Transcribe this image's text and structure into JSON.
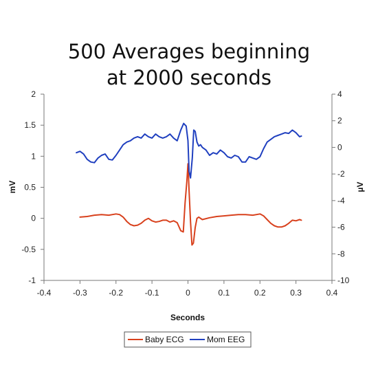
{
  "chart_data": {
    "type": "line",
    "title_lines": [
      "500 Averages beginning",
      "at 2000 seconds"
    ],
    "xlabel": "Seconds",
    "ylabel_left": "mV",
    "ylabel_right": "µV",
    "xlim": [
      -0.4,
      0.4
    ],
    "ylim_left": [
      -1,
      2
    ],
    "ylim_right": [
      -10,
      4
    ],
    "x_ticks": [
      -0.4,
      -0.3,
      -0.2,
      -0.1,
      0,
      0.1,
      0.2,
      0.3,
      0.4
    ],
    "x_tick_labels": [
      "-0.4",
      "-0.3",
      "-0.2",
      "-0.1",
      "0",
      "0.1",
      "0.2",
      "0.3",
      "0.4"
    ],
    "y_left_ticks": [
      -1,
      -0.5,
      0,
      0.5,
      1,
      1.5,
      2
    ],
    "y_left_tick_labels": [
      "-1",
      "-0.5",
      "0",
      "0.5",
      "1",
      "1.5",
      "2"
    ],
    "y_right_ticks": [
      -10,
      -8,
      -6,
      -4,
      -2,
      0,
      2,
      4
    ],
    "y_right_tick_labels": [
      "-10",
      "-8",
      "-6",
      "-4",
      "-2",
      "0",
      "2",
      "4"
    ],
    "grid": false,
    "legend_position": "bottom-center",
    "series": [
      {
        "name": "Baby ECG",
        "axis": "left",
        "color": "#d8401c",
        "x": [
          -0.3,
          -0.28,
          -0.26,
          -0.24,
          -0.22,
          -0.2,
          -0.19,
          -0.18,
          -0.17,
          -0.16,
          -0.15,
          -0.14,
          -0.13,
          -0.12,
          -0.11,
          -0.1,
          -0.09,
          -0.08,
          -0.07,
          -0.06,
          -0.05,
          -0.04,
          -0.03,
          -0.02,
          -0.013,
          -0.008,
          -0.003,
          0,
          0.003,
          0.007,
          0.011,
          0.015,
          0.02,
          0.025,
          0.03,
          0.04,
          0.06,
          0.08,
          0.1,
          0.12,
          0.14,
          0.16,
          0.18,
          0.2,
          0.21,
          0.22,
          0.23,
          0.24,
          0.25,
          0.26,
          0.27,
          0.28,
          0.29,
          0.3,
          0.31,
          0.315
        ],
        "y": [
          0.02,
          0.03,
          0.05,
          0.06,
          0.05,
          0.07,
          0.06,
          0.02,
          -0.05,
          -0.1,
          -0.12,
          -0.11,
          -0.08,
          -0.03,
          0.0,
          -0.04,
          -0.06,
          -0.05,
          -0.03,
          -0.03,
          -0.06,
          -0.04,
          -0.07,
          -0.2,
          -0.22,
          0.25,
          0.6,
          0.88,
          0.45,
          -0.05,
          -0.43,
          -0.4,
          -0.15,
          0.0,
          0.02,
          -0.02,
          0.01,
          0.03,
          0.04,
          0.05,
          0.06,
          0.06,
          0.05,
          0.07,
          0.04,
          -0.02,
          -0.08,
          -0.12,
          -0.14,
          -0.14,
          -0.12,
          -0.08,
          -0.03,
          -0.04,
          -0.02,
          -0.03
        ]
      },
      {
        "name": "Mom EEG",
        "axis": "right",
        "color": "#1f3fbf",
        "x": [
          -0.31,
          -0.3,
          -0.29,
          -0.28,
          -0.27,
          -0.26,
          -0.25,
          -0.24,
          -0.23,
          -0.22,
          -0.21,
          -0.2,
          -0.19,
          -0.18,
          -0.17,
          -0.16,
          -0.15,
          -0.14,
          -0.13,
          -0.12,
          -0.11,
          -0.1,
          -0.09,
          -0.08,
          -0.07,
          -0.06,
          -0.05,
          -0.04,
          -0.03,
          -0.02,
          -0.012,
          -0.005,
          0,
          0.003,
          0.007,
          0.012,
          0.016,
          0.02,
          0.025,
          0.03,
          0.035,
          0.04,
          0.05,
          0.06,
          0.07,
          0.08,
          0.09,
          0.1,
          0.11,
          0.12,
          0.13,
          0.14,
          0.15,
          0.16,
          0.17,
          0.18,
          0.19,
          0.2,
          0.21,
          0.22,
          0.23,
          0.24,
          0.25,
          0.26,
          0.27,
          0.28,
          0.29,
          0.3,
          0.31,
          0.315
        ],
        "y": [
          -0.4,
          -0.3,
          -0.5,
          -0.9,
          -1.1,
          -1.15,
          -0.8,
          -0.6,
          -0.5,
          -0.9,
          -0.95,
          -0.6,
          -0.2,
          0.2,
          0.4,
          0.5,
          0.7,
          0.8,
          0.7,
          1.0,
          0.8,
          0.7,
          1.0,
          0.8,
          0.7,
          0.8,
          1.0,
          0.7,
          0.5,
          1.3,
          1.8,
          1.6,
          0.5,
          -1.8,
          -2.3,
          -0.8,
          1.3,
          1.2,
          0.4,
          0.1,
          0.2,
          0.0,
          -0.2,
          -0.6,
          -0.4,
          -0.5,
          -0.2,
          -0.4,
          -0.7,
          -0.8,
          -0.6,
          -0.7,
          -1.1,
          -1.1,
          -0.7,
          -0.8,
          -0.9,
          -0.7,
          -0.1,
          0.4,
          0.6,
          0.8,
          0.9,
          1.0,
          1.1,
          1.05,
          1.3,
          1.1,
          0.8,
          0.85
        ]
      }
    ]
  }
}
